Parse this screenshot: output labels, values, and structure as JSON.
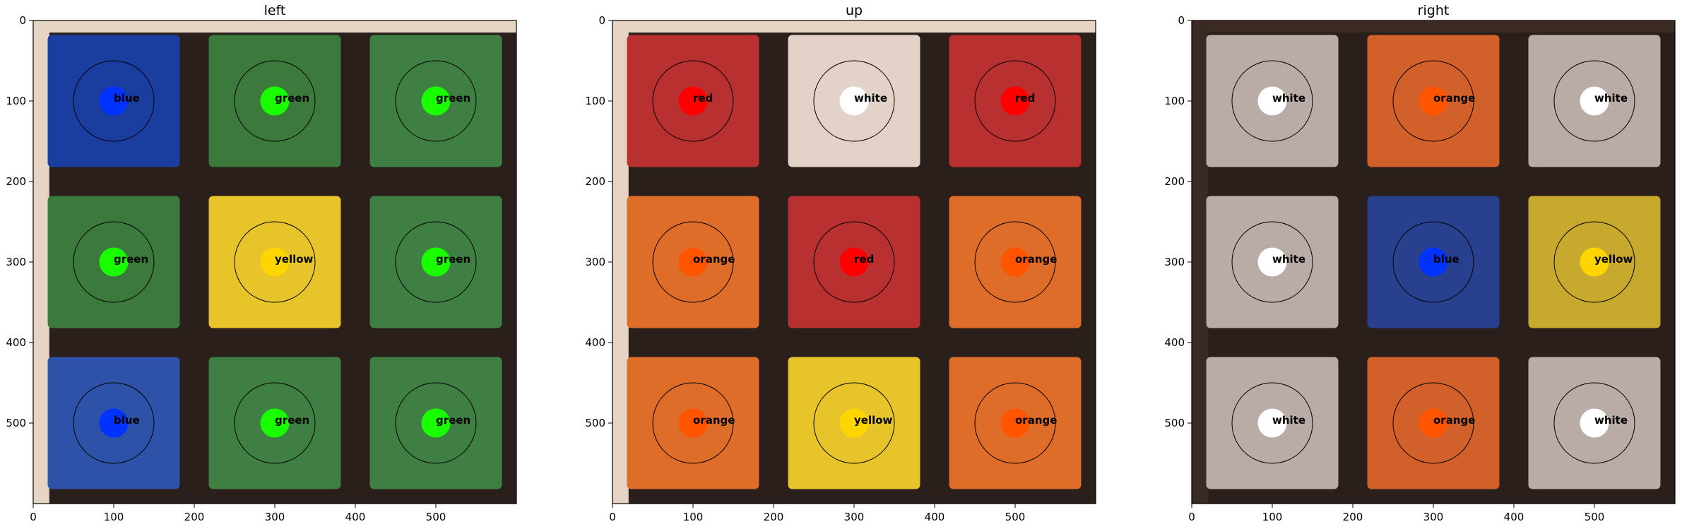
{
  "chart_data": [
    {
      "type": "image",
      "title": "left",
      "xlim": [
        0,
        600
      ],
      "ylim": [
        600,
        0
      ],
      "xticks": [
        0,
        100,
        200,
        300,
        400,
        500
      ],
      "yticks": [
        0,
        100,
        200,
        300,
        400,
        500
      ],
      "background": "#e6d5c5",
      "sticker_colors": [
        [
          "#1a3ea0",
          "#3b7a3c",
          "#3f7f43"
        ],
        [
          "#3b7a3c",
          "#e7c52a",
          "#3f7f43"
        ],
        [
          "#2d52a8",
          "#3f7f43",
          "#3f7f43"
        ]
      ],
      "cells": [
        {
          "x": 100,
          "y": 100,
          "label": "blue",
          "marker": "#0033ff"
        },
        {
          "x": 300,
          "y": 100,
          "label": "green",
          "marker": "#19ff00"
        },
        {
          "x": 500,
          "y": 100,
          "label": "green",
          "marker": "#19ff00"
        },
        {
          "x": 100,
          "y": 300,
          "label": "green",
          "marker": "#19ff00"
        },
        {
          "x": 300,
          "y": 300,
          "label": "yellow",
          "marker": "#ffd500"
        },
        {
          "x": 500,
          "y": 300,
          "label": "green",
          "marker": "#19ff00"
        },
        {
          "x": 100,
          "y": 500,
          "label": "blue",
          "marker": "#0033ff"
        },
        {
          "x": 300,
          "y": 500,
          "label": "green",
          "marker": "#19ff00"
        },
        {
          "x": 500,
          "y": 500,
          "label": "green",
          "marker": "#19ff00"
        }
      ]
    },
    {
      "type": "image",
      "title": "up",
      "xlim": [
        0,
        600
      ],
      "ylim": [
        600,
        0
      ],
      "xticks": [
        0,
        100,
        200,
        300,
        400,
        500
      ],
      "yticks": [
        0,
        100,
        200,
        300,
        400,
        500
      ],
      "background": "#e6d5c5",
      "sticker_colors": [
        [
          "#b8302f",
          "#e2d2c8",
          "#b8302f"
        ],
        [
          "#de6d2a",
          "#b8302f",
          "#de6d2a"
        ],
        [
          "#de6d2a",
          "#e7c52a",
          "#de6d2a"
        ]
      ],
      "cells": [
        {
          "x": 100,
          "y": 100,
          "label": "red",
          "marker": "#ff0000"
        },
        {
          "x": 300,
          "y": 100,
          "label": "white",
          "marker": "#ffffff"
        },
        {
          "x": 500,
          "y": 100,
          "label": "red",
          "marker": "#ff0000"
        },
        {
          "x": 100,
          "y": 300,
          "label": "orange",
          "marker": "#ff5500"
        },
        {
          "x": 300,
          "y": 300,
          "label": "red",
          "marker": "#ff0000"
        },
        {
          "x": 500,
          "y": 300,
          "label": "orange",
          "marker": "#ff5500"
        },
        {
          "x": 100,
          "y": 500,
          "label": "orange",
          "marker": "#ff5500"
        },
        {
          "x": 300,
          "y": 500,
          "label": "yellow",
          "marker": "#ffd500"
        },
        {
          "x": 500,
          "y": 500,
          "label": "orange",
          "marker": "#ff5500"
        }
      ]
    },
    {
      "type": "image",
      "title": "right",
      "xlim": [
        0,
        600
      ],
      "ylim": [
        600,
        0
      ],
      "xticks": [
        0,
        100,
        200,
        300,
        400,
        500
      ],
      "yticks": [
        0,
        100,
        200,
        300,
        400,
        500
      ],
      "background": "#3a2a24",
      "sticker_colors": [
        [
          "#b9aba6",
          "#d1602a",
          "#b9aba6"
        ],
        [
          "#b9aba6",
          "#28408e",
          "#c7a92e"
        ],
        [
          "#b9aba6",
          "#d1602a",
          "#b9aba6"
        ]
      ],
      "cells": [
        {
          "x": 100,
          "y": 100,
          "label": "white",
          "marker": "#ffffff"
        },
        {
          "x": 300,
          "y": 100,
          "label": "orange",
          "marker": "#ff5500"
        },
        {
          "x": 500,
          "y": 100,
          "label": "white",
          "marker": "#ffffff"
        },
        {
          "x": 100,
          "y": 300,
          "label": "white",
          "marker": "#ffffff"
        },
        {
          "x": 300,
          "y": 300,
          "label": "blue",
          "marker": "#0033ff"
        },
        {
          "x": 500,
          "y": 300,
          "label": "yellow",
          "marker": "#ffd500"
        },
        {
          "x": 100,
          "y": 500,
          "label": "white",
          "marker": "#ffffff"
        },
        {
          "x": 300,
          "y": 500,
          "label": "orange",
          "marker": "#ff5500"
        },
        {
          "x": 500,
          "y": 500,
          "label": "white",
          "marker": "#ffffff"
        }
      ]
    }
  ]
}
